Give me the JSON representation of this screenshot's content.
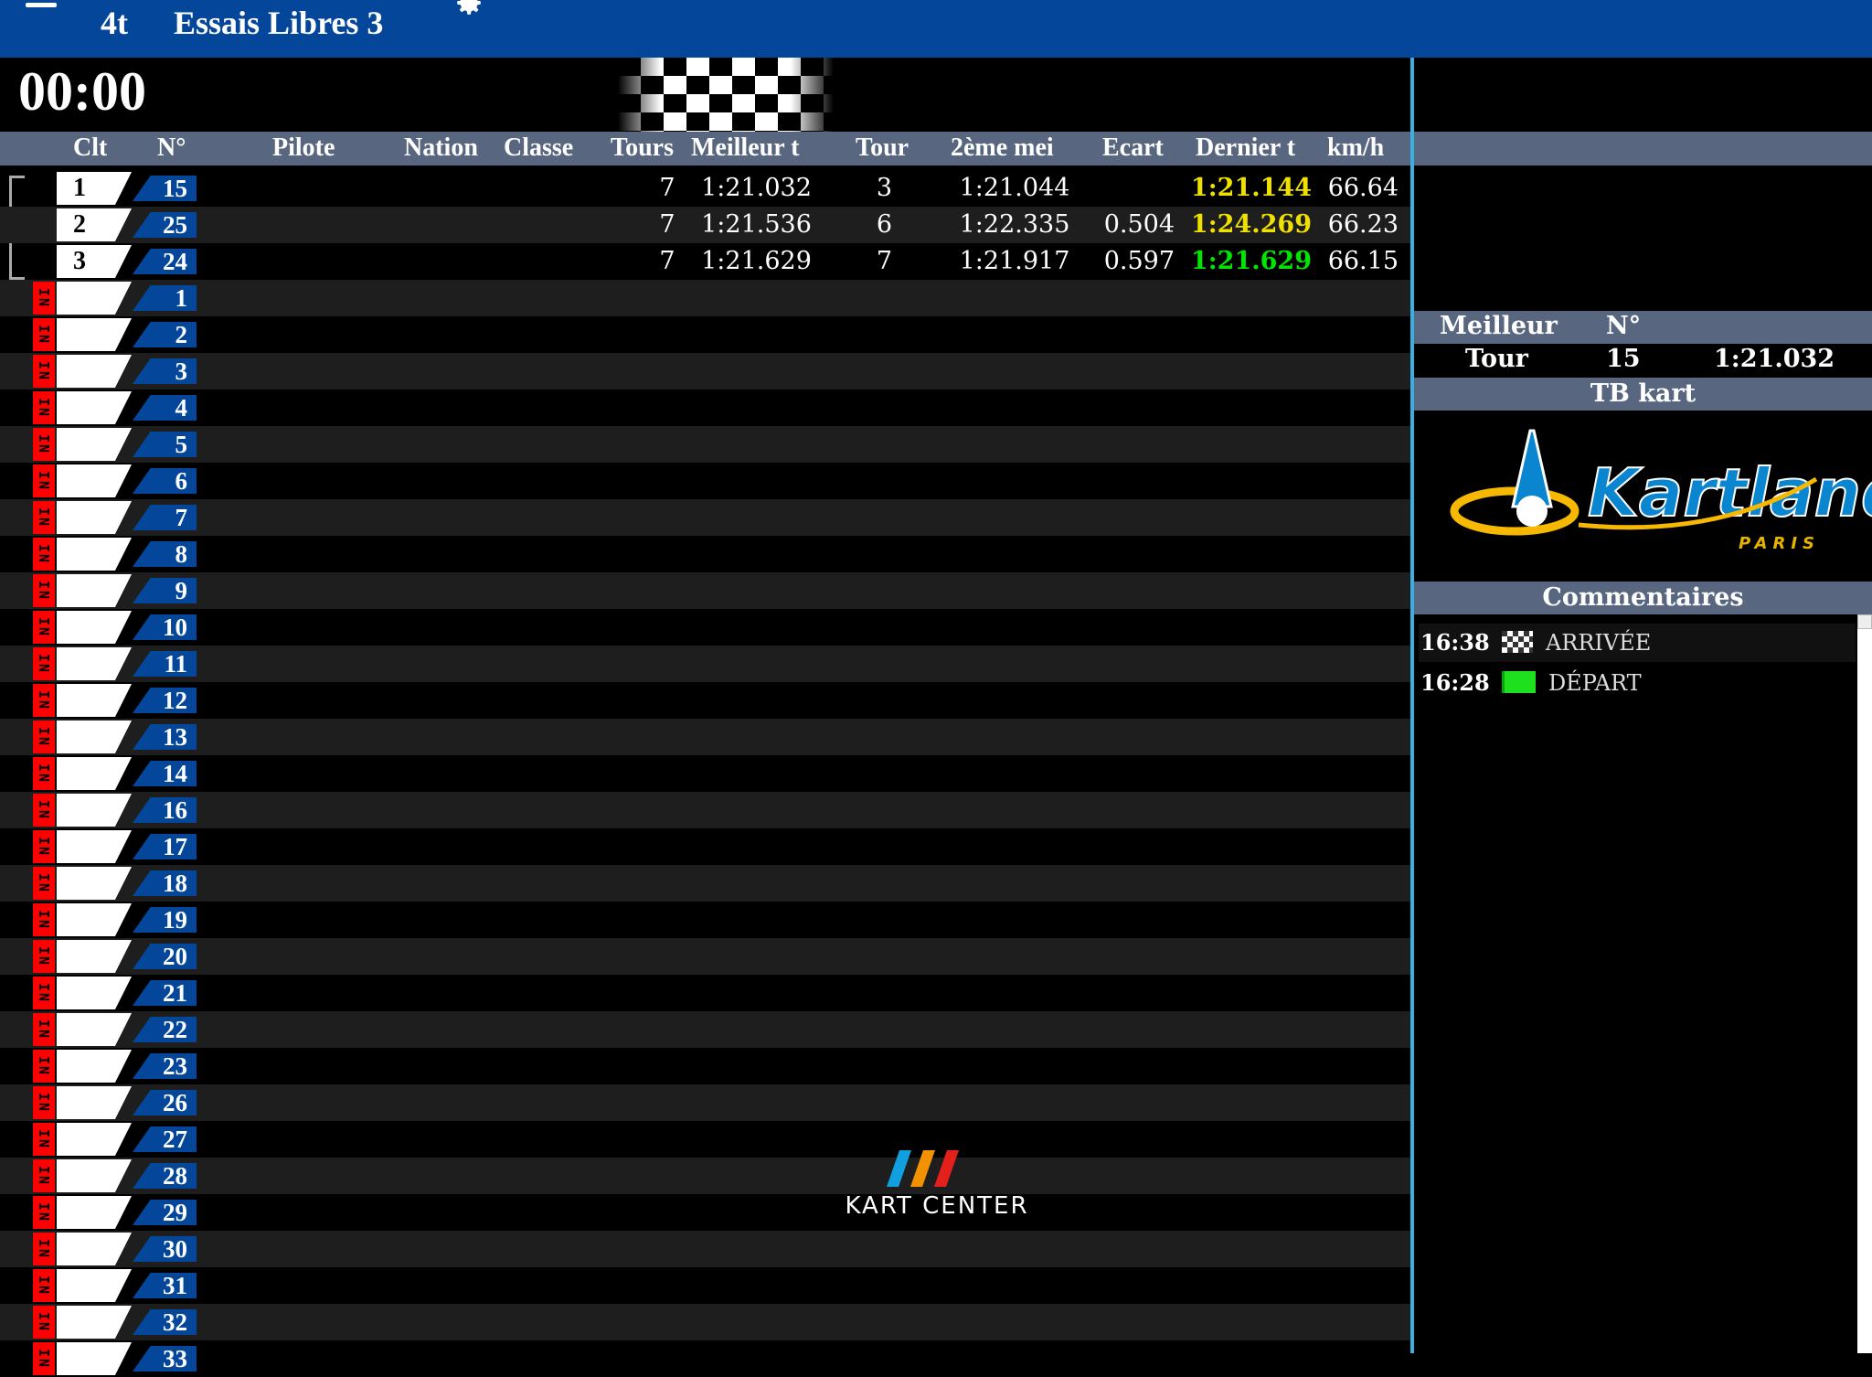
{
  "header": {
    "menu_icon": "hamburger-icon",
    "session_code": "4t",
    "session_name": "Essais Libres 3",
    "settings_icon": "gear-icon",
    "bg_color": "#03469a"
  },
  "timer": "00:00",
  "flag_icon": "checkered-flag-icon",
  "columns": {
    "clt": "Clt",
    "num": "N°",
    "pilote": "Pilote",
    "nation": "Nation",
    "classe": "Classe",
    "tours": "Tours",
    "meilleur": "Meilleur t",
    "tour": "Tour",
    "deuxieme": "2ème mei",
    "ecart": "Ecart",
    "dernier": "Dernier t",
    "kmh": "km/h"
  },
  "colors": {
    "best_yellow": "#f0e000",
    "best_green": "#00e600",
    "pit_red": "#ff0000",
    "divider": "#3bb0e0",
    "band": "#58677f"
  },
  "pit_label": "IN",
  "results": [
    {
      "clt": "1",
      "num": "15",
      "tours": "7",
      "meilleur": "1:21.032",
      "tour": "3",
      "deuxieme": "1:21.044",
      "ecart": "",
      "dernier": "1:21.144",
      "dernier_color": "yellow",
      "kmh": "66.64"
    },
    {
      "clt": "2",
      "num": "25",
      "tours": "7",
      "meilleur": "1:21.536",
      "tour": "6",
      "deuxieme": "1:22.335",
      "ecart": "0.504",
      "dernier": "1:24.269",
      "dernier_color": "yellow",
      "kmh": "66.23"
    },
    {
      "clt": "3",
      "num": "24",
      "tours": "7",
      "meilleur": "1:21.629",
      "tour": "7",
      "deuxieme": "1:21.917",
      "ecart": "0.597",
      "dernier": "1:21.629",
      "dernier_color": "green",
      "kmh": "66.15"
    }
  ],
  "pit_karts": [
    "1",
    "2",
    "3",
    "4",
    "5",
    "6",
    "7",
    "8",
    "9",
    "10",
    "11",
    "12",
    "13",
    "14",
    "16",
    "17",
    "18",
    "19",
    "20",
    "21",
    "22",
    "23",
    "26",
    "27",
    "28",
    "29",
    "30",
    "31",
    "32",
    "33"
  ],
  "best_lap": {
    "label1": "Meilleur",
    "label2": "Tour",
    "num_label": "N°",
    "num": "15",
    "time": "1:21.032",
    "driver": "TB kart"
  },
  "sponsor": {
    "name": "Kartland",
    "sub": "PARIS"
  },
  "kart_center": "KART CENTER",
  "comments_title": "Commentaires",
  "comments": [
    {
      "time": "16:38",
      "icon": "checkered-flag-icon",
      "text": "ARRIVÉE"
    },
    {
      "time": "16:28",
      "icon": "green-flag-icon",
      "text": "DÉPART"
    }
  ]
}
